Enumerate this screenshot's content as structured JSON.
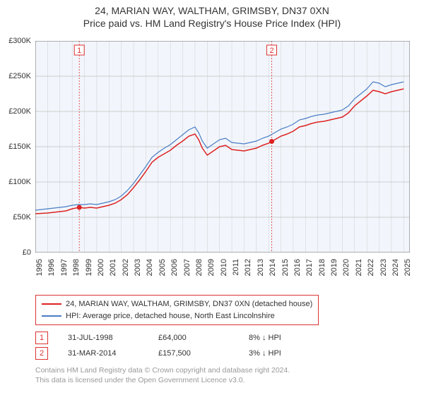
{
  "title_line1": "24, MARIAN WAY, WALTHAM, GRIMSBY, DN37 0XN",
  "title_line2": "Price paid vs. HM Land Registry's House Price Index (HPI)",
  "chart": {
    "type": "line",
    "plot_bg": "#f2f6fc",
    "outer_bg": "#ffffff",
    "border_color": "#666666",
    "grid_color": "#cccccc",
    "xlim": [
      1995,
      2025.5
    ],
    "ylim": [
      0,
      300000
    ],
    "yticks": [
      0,
      50000,
      100000,
      150000,
      200000,
      250000,
      300000
    ],
    "ytick_labels": [
      "£0",
      "£50K",
      "£100K",
      "£150K",
      "£200K",
      "£250K",
      "£300K"
    ],
    "xticks": [
      1995,
      1996,
      1997,
      1998,
      1999,
      2000,
      2001,
      2002,
      2003,
      2004,
      2005,
      2006,
      2007,
      2008,
      2009,
      2010,
      2011,
      2012,
      2013,
      2014,
      2015,
      2016,
      2017,
      2018,
      2019,
      2020,
      2021,
      2022,
      2023,
      2024,
      2025
    ],
    "label_fontsize": 11,
    "series": [
      {
        "name": "24, MARIAN WAY, WALTHAM, GRIMSBY, DN37 0XN (detached house)",
        "color": "#dd2222",
        "line_width": 1.5,
        "data": [
          [
            1995.0,
            55000
          ],
          [
            1995.5,
            55500
          ],
          [
            1996.0,
            56000
          ],
          [
            1996.5,
            57000
          ],
          [
            1997.0,
            58000
          ],
          [
            1997.5,
            59000
          ],
          [
            1998.0,
            62000
          ],
          [
            1998.58,
            64000
          ],
          [
            1999.0,
            63000
          ],
          [
            1999.5,
            64000
          ],
          [
            2000.0,
            63000
          ],
          [
            2000.5,
            65000
          ],
          [
            2001.0,
            67000
          ],
          [
            2001.5,
            70000
          ],
          [
            2002.0,
            75000
          ],
          [
            2002.5,
            82000
          ],
          [
            2003.0,
            92000
          ],
          [
            2003.5,
            103000
          ],
          [
            2004.0,
            115000
          ],
          [
            2004.5,
            128000
          ],
          [
            2005.0,
            135000
          ],
          [
            2005.5,
            140000
          ],
          [
            2006.0,
            145000
          ],
          [
            2006.5,
            152000
          ],
          [
            2007.0,
            158000
          ],
          [
            2007.5,
            165000
          ],
          [
            2008.0,
            168000
          ],
          [
            2008.3,
            160000
          ],
          [
            2008.6,
            148000
          ],
          [
            2009.0,
            138000
          ],
          [
            2009.5,
            144000
          ],
          [
            2010.0,
            150000
          ],
          [
            2010.5,
            152000
          ],
          [
            2011.0,
            146000
          ],
          [
            2011.5,
            145000
          ],
          [
            2012.0,
            144000
          ],
          [
            2012.5,
            146000
          ],
          [
            2013.0,
            148000
          ],
          [
            2013.5,
            152000
          ],
          [
            2014.0,
            155000
          ],
          [
            2014.25,
            157500
          ],
          [
            2014.5,
            160000
          ],
          [
            2015.0,
            165000
          ],
          [
            2015.5,
            168000
          ],
          [
            2016.0,
            172000
          ],
          [
            2016.5,
            178000
          ],
          [
            2017.0,
            180000
          ],
          [
            2017.5,
            183000
          ],
          [
            2018.0,
            185000
          ],
          [
            2018.5,
            186000
          ],
          [
            2019.0,
            188000
          ],
          [
            2019.5,
            190000
          ],
          [
            2020.0,
            192000
          ],
          [
            2020.5,
            198000
          ],
          [
            2021.0,
            208000
          ],
          [
            2021.5,
            215000
          ],
          [
            2022.0,
            222000
          ],
          [
            2022.5,
            230000
          ],
          [
            2023.0,
            228000
          ],
          [
            2023.5,
            225000
          ],
          [
            2024.0,
            228000
          ],
          [
            2024.5,
            230000
          ],
          [
            2025.0,
            232000
          ]
        ]
      },
      {
        "name": "HPI: Average price, detached house, North East Lincolnshire",
        "color": "#4a7cc4",
        "line_width": 1.2,
        "data": [
          [
            1995.0,
            60000
          ],
          [
            1995.5,
            61000
          ],
          [
            1996.0,
            62000
          ],
          [
            1996.5,
            63000
          ],
          [
            1997.0,
            64000
          ],
          [
            1997.5,
            65000
          ],
          [
            1998.0,
            67000
          ],
          [
            1998.5,
            68000
          ],
          [
            1999.0,
            68000
          ],
          [
            1999.5,
            69000
          ],
          [
            2000.0,
            68000
          ],
          [
            2000.5,
            70000
          ],
          [
            2001.0,
            72000
          ],
          [
            2001.5,
            75000
          ],
          [
            2002.0,
            80000
          ],
          [
            2002.5,
            88000
          ],
          [
            2003.0,
            98000
          ],
          [
            2003.5,
            110000
          ],
          [
            2004.0,
            122000
          ],
          [
            2004.5,
            135000
          ],
          [
            2005.0,
            142000
          ],
          [
            2005.5,
            148000
          ],
          [
            2006.0,
            153000
          ],
          [
            2006.5,
            160000
          ],
          [
            2007.0,
            167000
          ],
          [
            2007.5,
            174000
          ],
          [
            2008.0,
            178000
          ],
          [
            2008.3,
            170000
          ],
          [
            2008.6,
            158000
          ],
          [
            2009.0,
            148000
          ],
          [
            2009.5,
            154000
          ],
          [
            2010.0,
            160000
          ],
          [
            2010.5,
            162000
          ],
          [
            2011.0,
            156000
          ],
          [
            2011.5,
            155000
          ],
          [
            2012.0,
            154000
          ],
          [
            2012.5,
            156000
          ],
          [
            2013.0,
            158000
          ],
          [
            2013.5,
            162000
          ],
          [
            2014.0,
            165000
          ],
          [
            2014.5,
            170000
          ],
          [
            2015.0,
            175000
          ],
          [
            2015.5,
            178000
          ],
          [
            2016.0,
            182000
          ],
          [
            2016.5,
            188000
          ],
          [
            2017.0,
            190000
          ],
          [
            2017.5,
            193000
          ],
          [
            2018.0,
            195000
          ],
          [
            2018.5,
            196000
          ],
          [
            2019.0,
            198000
          ],
          [
            2019.5,
            200000
          ],
          [
            2020.0,
            202000
          ],
          [
            2020.5,
            208000
          ],
          [
            2021.0,
            218000
          ],
          [
            2021.5,
            225000
          ],
          [
            2022.0,
            232000
          ],
          [
            2022.5,
            242000
          ],
          [
            2023.0,
            240000
          ],
          [
            2023.5,
            235000
          ],
          [
            2024.0,
            238000
          ],
          [
            2024.5,
            240000
          ],
          [
            2025.0,
            242000
          ]
        ]
      }
    ],
    "markers": [
      {
        "label": "1",
        "x": 1998.58,
        "y": 64000,
        "date": "31-JUL-1998",
        "price": "£64,000",
        "change": "8% ↓ HPI"
      },
      {
        "label": "2",
        "x": 2014.25,
        "y": 157500,
        "date": "31-MAR-2014",
        "price": "£157,500",
        "change": "3% ↓ HPI"
      }
    ],
    "marker_line_color": "#dd5555",
    "marker_dot_color": "#dd2222"
  },
  "footer_line1": "Contains HM Land Registry data © Crown copyright and database right 2024.",
  "footer_line2": "This data is licensed under the Open Government Licence v3.0."
}
